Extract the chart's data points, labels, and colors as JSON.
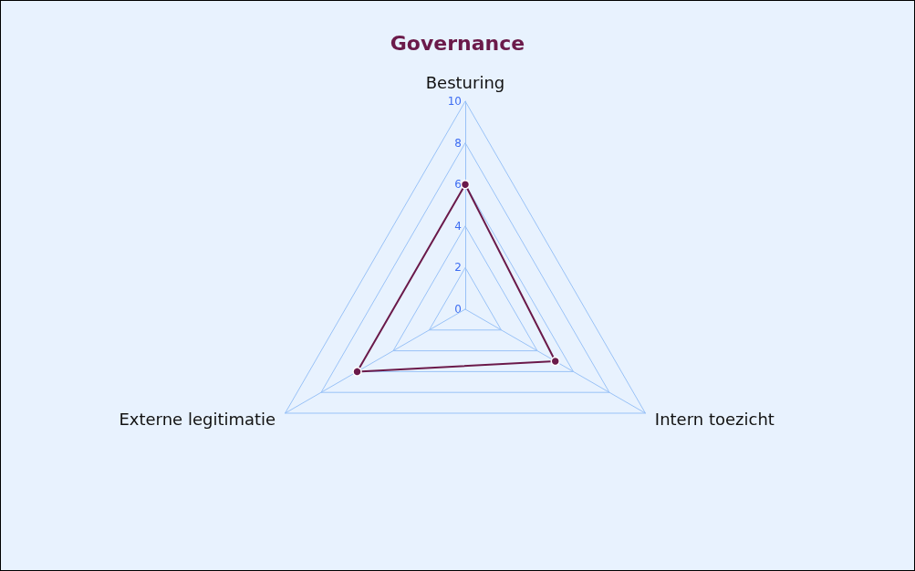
{
  "chart_data": {
    "type": "radar",
    "title": "Governance",
    "categories": [
      "Besturing",
      "Intern toezicht",
      "Externe legitimatie"
    ],
    "series": [
      {
        "color": "#6b1a4a",
        "values": [
          6,
          5,
          6
        ]
      }
    ],
    "ylim": [
      0,
      10
    ],
    "yticks": [
      0,
      2,
      4,
      6,
      8,
      10
    ],
    "marker": "circle",
    "grid": true
  }
}
